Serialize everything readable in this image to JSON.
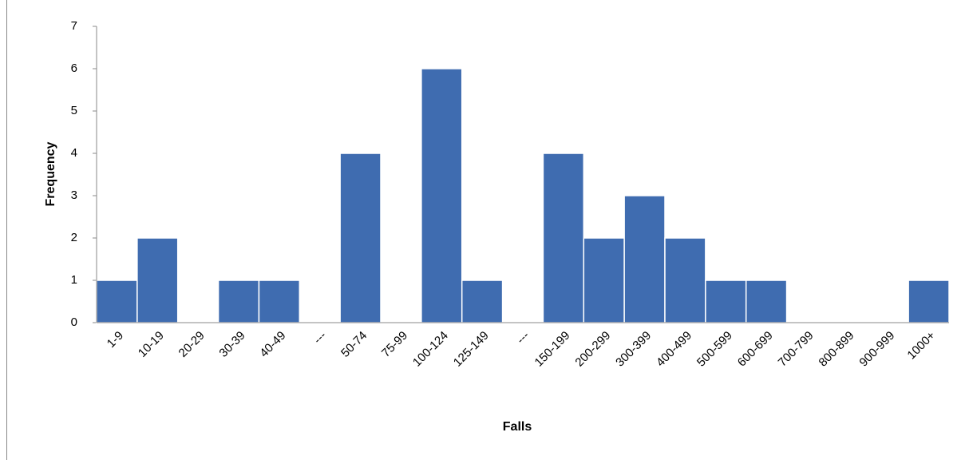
{
  "chart_data": {
    "type": "bar",
    "xlabel": "Falls",
    "ylabel": "Frequency",
    "categories": [
      "1-9",
      "10-19",
      "20-29",
      "30-39",
      "40-49",
      "---",
      "50-74",
      "75-99",
      "100-124",
      "125-149",
      "---",
      "150-199",
      "200-299",
      "300-399",
      "400-499",
      "500-599",
      "600-699",
      "700-799",
      "800-899",
      "900-999",
      "1000+"
    ],
    "values": [
      1,
      2,
      0,
      1,
      1,
      0,
      4,
      0,
      6,
      1,
      0,
      4,
      2,
      3,
      2,
      1,
      1,
      0,
      0,
      0,
      1
    ],
    "color": "#3f6cb0",
    "ylim": [
      0,
      7
    ],
    "yticks": [
      0,
      1,
      2,
      3,
      4,
      5,
      6,
      7
    ],
    "grid": false
  }
}
